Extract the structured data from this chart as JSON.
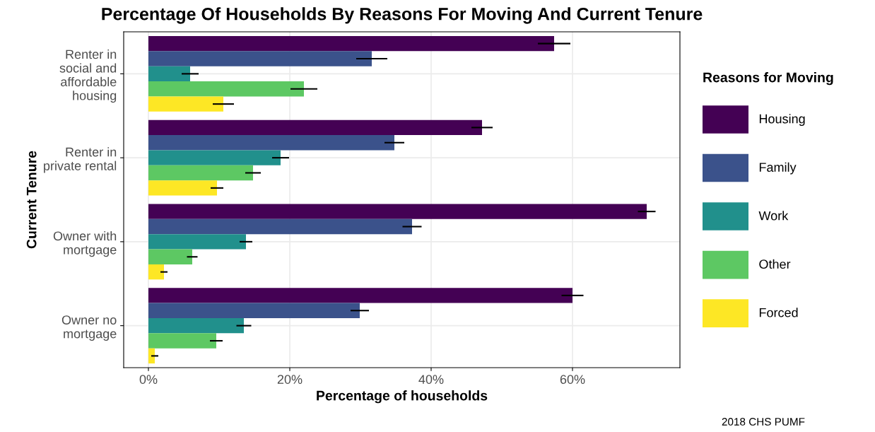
{
  "chart_data": {
    "type": "bar",
    "orientation": "horizontal",
    "title": "Percentage Of Households By Reasons For Moving And Current Tenure",
    "xlabel": "Percentage of households",
    "ylabel": "Current Tenure",
    "legend_title": "Reasons for Moving",
    "legend": "right",
    "grid": true,
    "categories": [
      "Renter in\nsocial and\naffordable\nhousing",
      "Renter in\nprivate rental",
      "Owner with\nmortgage",
      "Owner no\nmortgage"
    ],
    "series": [
      {
        "name": "Housing",
        "color": "#440154",
        "values": [
          57.4,
          47.2,
          70.5,
          60.0
        ],
        "errors": [
          2.3,
          1.5,
          1.25,
          1.55
        ]
      },
      {
        "name": "Family",
        "color": "#3b528b",
        "values": [
          31.6,
          34.8,
          37.3,
          29.9
        ],
        "errors": [
          2.2,
          1.4,
          1.35,
          1.3
        ]
      },
      {
        "name": "Work",
        "color": "#21908c",
        "values": [
          5.9,
          18.7,
          13.8,
          13.5
        ],
        "errors": [
          1.2,
          1.2,
          0.9,
          1.05
        ]
      },
      {
        "name": "Other",
        "color": "#5dc863",
        "values": [
          22.0,
          14.8,
          6.2,
          9.6
        ],
        "errors": [
          1.9,
          1.1,
          0.75,
          0.9
        ]
      },
      {
        "name": "Forced",
        "color": "#fde725",
        "values": [
          10.6,
          9.7,
          2.2,
          0.9
        ],
        "errors": [
          1.5,
          0.9,
          0.5,
          0.5
        ]
      }
    ],
    "xlim": [
      -3.5,
      75.2
    ],
    "xticks": [
      {
        "value": 0,
        "label": "0%"
      },
      {
        "value": 20,
        "label": "20%"
      },
      {
        "value": 40,
        "label": "40%"
      },
      {
        "value": 60,
        "label": "60%"
      }
    ],
    "annotations": [
      "2018 CHS PUMF"
    ]
  }
}
